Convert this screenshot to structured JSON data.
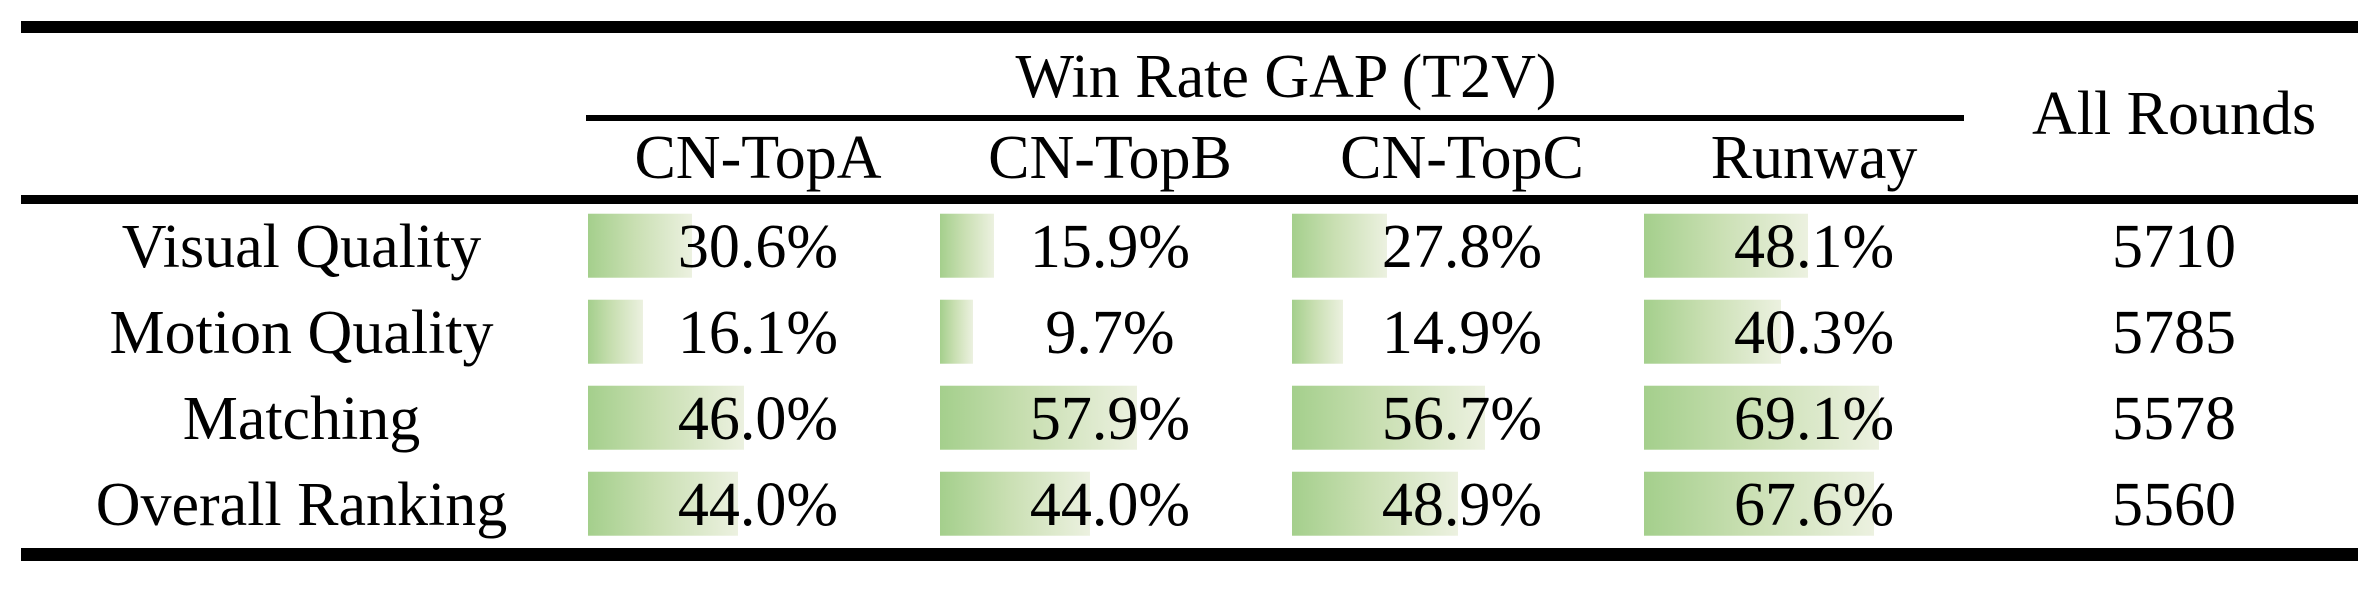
{
  "table": {
    "group_header": "Win Rate GAP (T2V)",
    "all_rounds_header": "All Rounds",
    "model_columns": [
      "CN-TopA",
      "CN-TopB",
      "CN-TopC",
      "Runway"
    ],
    "rows": [
      {
        "label": "Visual Quality",
        "cells": [
          {
            "value": 30.6,
            "text": "30.6%"
          },
          {
            "value": 15.9,
            "text": "15.9%"
          },
          {
            "value": 27.8,
            "text": "27.8%"
          },
          {
            "value": 48.1,
            "text": "48.1%"
          }
        ],
        "all_rounds": "5710"
      },
      {
        "label": "Motion Quality",
        "cells": [
          {
            "value": 16.1,
            "text": "16.1%"
          },
          {
            "value": 9.7,
            "text": "9.7%"
          },
          {
            "value": 14.9,
            "text": "14.9%"
          },
          {
            "value": 40.3,
            "text": "40.3%"
          }
        ],
        "all_rounds": "5785"
      },
      {
        "label": "Matching",
        "cells": [
          {
            "value": 46.0,
            "text": "46.0%"
          },
          {
            "value": 57.9,
            "text": "57.9%"
          },
          {
            "value": 56.7,
            "text": "56.7%"
          },
          {
            "value": 69.1,
            "text": "69.1%"
          }
        ],
        "all_rounds": "5578"
      },
      {
        "label": "Overall Ranking",
        "cells": [
          {
            "value": 44.0,
            "text": "44.0%"
          },
          {
            "value": 44.0,
            "text": "44.0%"
          },
          {
            "value": 48.9,
            "text": "48.9%"
          },
          {
            "value": 67.6,
            "text": "67.6%"
          }
        ],
        "all_rounds": "5560"
      }
    ],
    "colors": {
      "bar_gradient_start": "#a4cf8c",
      "bar_gradient_end": "#ecf1e0",
      "rule_color": "#000000",
      "text_color": "#000000",
      "background": "#ffffff"
    }
  },
  "chart_data": {
    "type": "table",
    "title": "Win Rate GAP (T2V)",
    "categories": [
      "Visual Quality",
      "Motion Quality",
      "Matching",
      "Overall Ranking"
    ],
    "series": [
      {
        "name": "CN-TopA",
        "values": [
          30.6,
          16.1,
          46.0,
          44.0
        ]
      },
      {
        "name": "CN-TopB",
        "values": [
          15.9,
          9.7,
          57.9,
          44.0
        ]
      },
      {
        "name": "CN-TopC",
        "values": [
          27.8,
          14.9,
          56.7,
          48.9
        ]
      },
      {
        "name": "Runway",
        "values": [
          48.1,
          40.3,
          69.1,
          67.6
        ]
      }
    ],
    "extra_column": {
      "name": "All Rounds",
      "values": [
        5710,
        5785,
        5578,
        5560
      ]
    },
    "unit": "%",
    "value_range": [
      0,
      100
    ],
    "bars_embedded_in_cells": true
  }
}
